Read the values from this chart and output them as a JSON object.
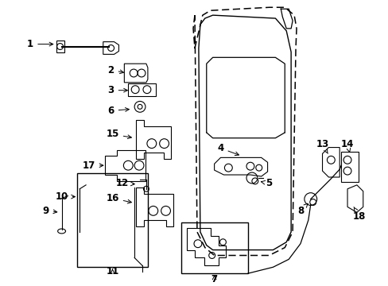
{
  "background_color": "#ffffff",
  "fig_width": 4.89,
  "fig_height": 3.6,
  "dpi": 100,
  "door_outer_dashed": {
    "x": [
      245,
      245,
      252,
      265,
      340,
      365,
      375,
      375,
      365,
      340,
      265,
      252,
      245
    ],
    "y": [
      20,
      295,
      320,
      330,
      330,
      320,
      300,
      60,
      25,
      10,
      10,
      20,
      20
    ]
  },
  "door_inner_solid": {
    "x": [
      255,
      255,
      265,
      360,
      370,
      370,
      360,
      265,
      255
    ],
    "y": [
      35,
      285,
      310,
      310,
      290,
      75,
      40,
      30,
      35
    ]
  },
  "window_opening": {
    "x": [
      262,
      262,
      270,
      355,
      365,
      365,
      355,
      270,
      262
    ],
    "y": [
      55,
      175,
      165,
      165,
      175,
      80,
      50,
      47,
      55
    ]
  },
  "label_fontsize": 8,
  "label_fontweight": "bold"
}
